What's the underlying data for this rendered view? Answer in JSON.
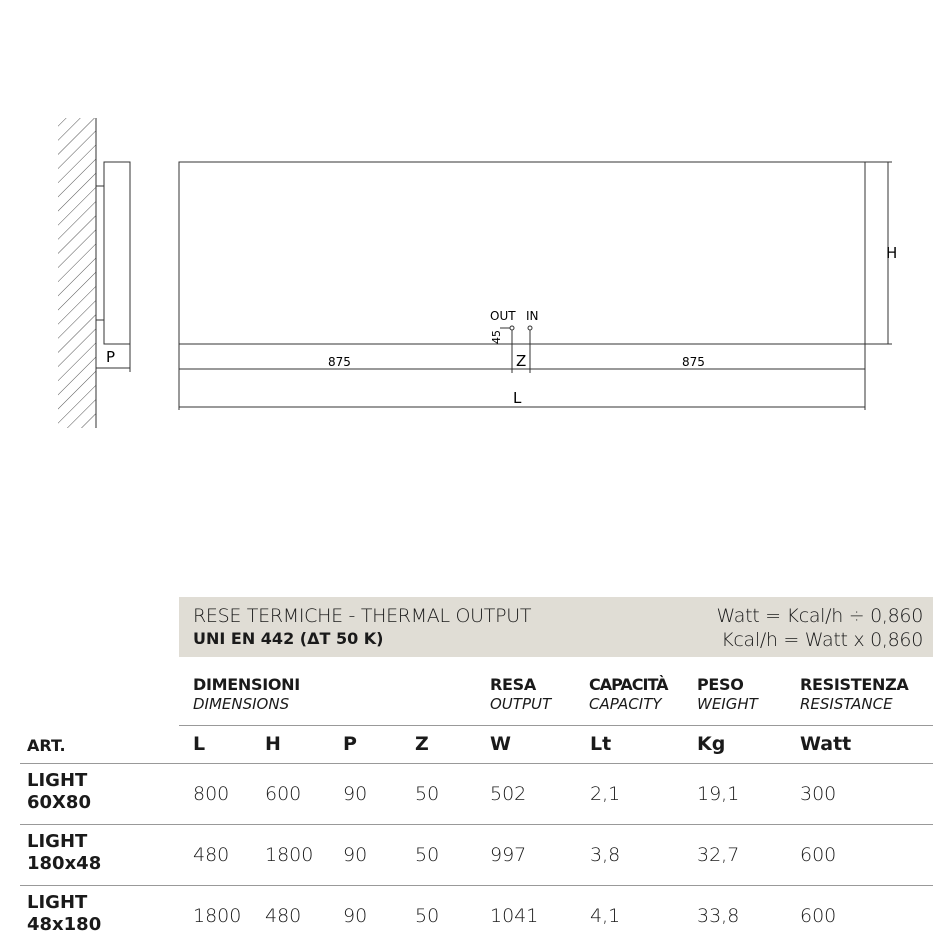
{
  "drawing": {
    "label_p": "P",
    "label_h": "H",
    "label_l": "L",
    "label_z": "Z",
    "label_out": "OUT",
    "label_in": "IN",
    "label_45": "45",
    "dim_left": "875",
    "dim_right": "875"
  },
  "band": {
    "title": "RESE TERMICHE - THERMAL OUTPUT",
    "subtitle": "UNI EN 442 (ΔT 50 K)",
    "formula1": "Watt = Kcal/h ÷ 0,860",
    "formula2": "Kcal/h = Watt x 0,860"
  },
  "groups": [
    {
      "bold": "DIMENSIONI",
      "italic": "DIMENSIONS"
    },
    {
      "bold": "RESA",
      "italic": "OUTPUT"
    },
    {
      "bold": "CAPACITÀ",
      "italic": "CAPACITY"
    },
    {
      "bold": "PESO",
      "italic": "WEIGHT"
    },
    {
      "bold": "RESISTENZA",
      "italic": "RESISTANCE"
    }
  ],
  "columns": [
    "ART.",
    "L",
    "H",
    "P",
    "Z",
    "W",
    "Lt",
    "Kg",
    "Watt"
  ],
  "rows": [
    {
      "art1": "LIGHT",
      "art2": "60X80",
      "values": [
        "800",
        "600",
        "90",
        "50",
        "502",
        "2,1",
        "19,1",
        "300"
      ]
    },
    {
      "art1": "LIGHT",
      "art2": "180x48",
      "values": [
        "480",
        "1800",
        "90",
        "50",
        "997",
        "3,8",
        "32,7",
        "600"
      ]
    },
    {
      "art1": "LIGHT",
      "art2": "48x180",
      "values": [
        "1800",
        "480",
        "90",
        "50",
        "1041",
        "4,1",
        "33,8",
        "600"
      ]
    }
  ]
}
